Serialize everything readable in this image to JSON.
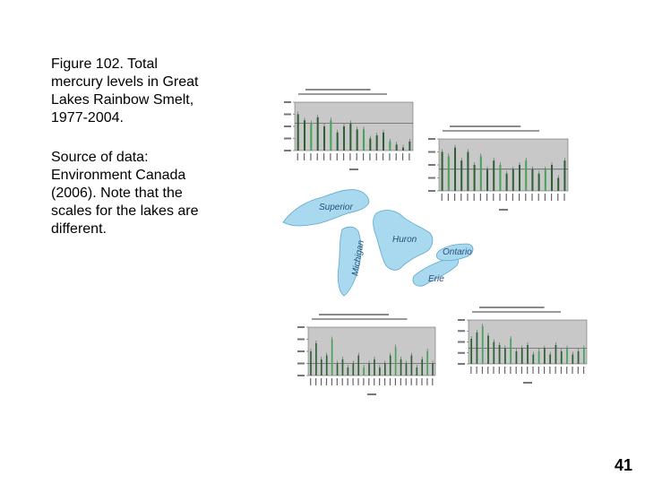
{
  "caption": {
    "figure": "Figure 102. Total mercury levels in Great Lakes Rainbow Smelt, 1977-2004.",
    "source": "Source of data: Environment Canada (2006). Note that the scales for the lakes are different."
  },
  "page_number": "41",
  "lakes": {
    "superior": "Superior",
    "michigan": "Michigan",
    "huron": "Huron",
    "ontario": "Ontario",
    "erie": "Erie"
  },
  "colors": {
    "water": "#a9d9ee",
    "water_outline": "#5ea7cc",
    "plot_bg": "#c8c8c8",
    "bar_dark": "#2f5f36",
    "bar_light": "#46a15b"
  },
  "chart_data": [
    {
      "type": "bar",
      "lake": "Superior",
      "values": [
        0.12,
        0.1,
        0.09,
        0.11,
        0.08,
        0.1,
        0.06,
        0.08,
        0.09,
        0.07,
        0.07,
        0.04,
        0.05,
        0.06,
        0.03,
        0.02,
        0.01,
        0.03
      ],
      "highlight": [
        2,
        5,
        10,
        14
      ],
      "threshold": 0.09,
      "ylim": [
        0,
        0.16
      ]
    },
    {
      "type": "bar",
      "lake": "Huron",
      "values": [
        0.09,
        0.08,
        0.1,
        0.07,
        0.09,
        0.06,
        0.08,
        0.05,
        0.07,
        0.06,
        0.04,
        0.05,
        0.06,
        0.07,
        0.05,
        0.04,
        0.05,
        0.06,
        0.03,
        0.07
      ],
      "highlight": [
        1,
        6,
        9,
        13,
        16
      ],
      "threshold": 0.05,
      "ylim": [
        0,
        0.12
      ]
    },
    {
      "type": "bar",
      "lake": "Erie",
      "values": [
        0.06,
        0.08,
        0.04,
        0.05,
        0.09,
        0.03,
        0.04,
        0.02,
        0.03,
        0.05,
        0.02,
        0.03,
        0.04,
        0.02,
        0.03,
        0.05,
        0.07,
        0.04,
        0.03,
        0.05,
        0.02,
        0.04,
        0.06,
        0.03
      ],
      "highlight": [
        4,
        10,
        16,
        22
      ],
      "threshold": 0.03,
      "ylim": [
        0,
        0.12
      ]
    },
    {
      "type": "bar",
      "lake": "Ontario",
      "values": [
        0.08,
        0.1,
        0.12,
        0.09,
        0.07,
        0.06,
        0.05,
        0.08,
        0.04,
        0.05,
        0.06,
        0.03,
        0.04,
        0.05,
        0.03,
        0.06,
        0.04,
        0.05,
        0.03,
        0.04,
        0.05
      ],
      "highlight": [
        2,
        7,
        12,
        17,
        20
      ],
      "threshold": 0.05,
      "ylim": [
        0,
        0.14
      ]
    }
  ]
}
